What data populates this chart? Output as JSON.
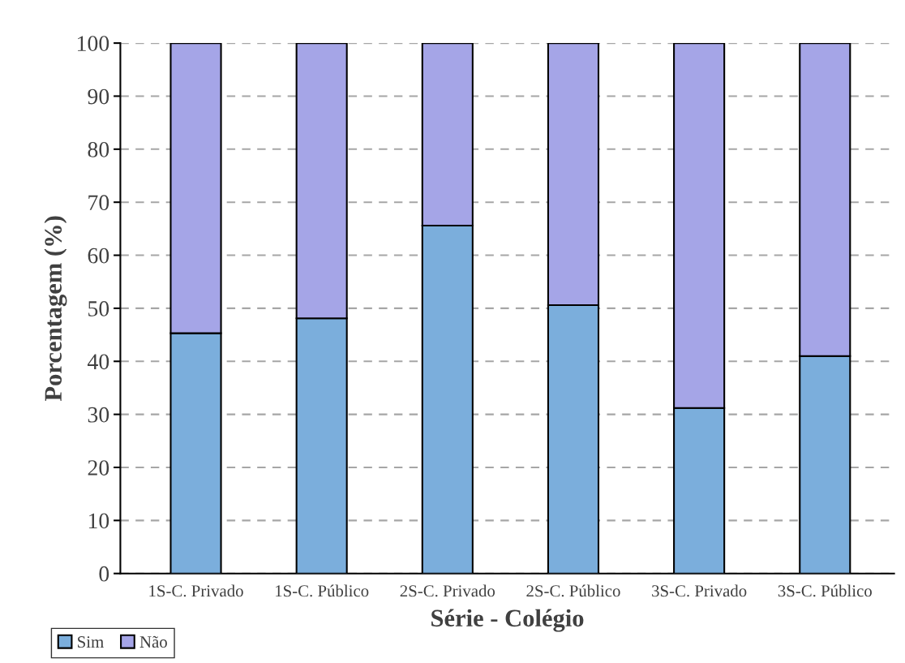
{
  "chart_data": {
    "type": "bar",
    "stacked": true,
    "categories": [
      "1S-C. Privado",
      "1S-C. Público",
      "2S-C. Privado",
      "2S-C. Público",
      "3S-C. Privado",
      "3S-C. Público"
    ],
    "series": [
      {
        "name": "Sim",
        "color": "#7baedc",
        "values": [
          45.3,
          48.1,
          65.6,
          50.6,
          31.2,
          41.0
        ]
      },
      {
        "name": "Não",
        "color": "#a5a5e7",
        "values": [
          54.7,
          51.9,
          34.4,
          49.4,
          68.8,
          59.0
        ]
      }
    ],
    "xlabel": "Série - Colégio",
    "ylabel": "Porcentagem (%)",
    "ylim": [
      0,
      100
    ],
    "yticks": [
      0,
      10,
      20,
      30,
      40,
      50,
      60,
      70,
      80,
      90,
      100
    ],
    "grid": "y",
    "legend": "bottom left"
  }
}
